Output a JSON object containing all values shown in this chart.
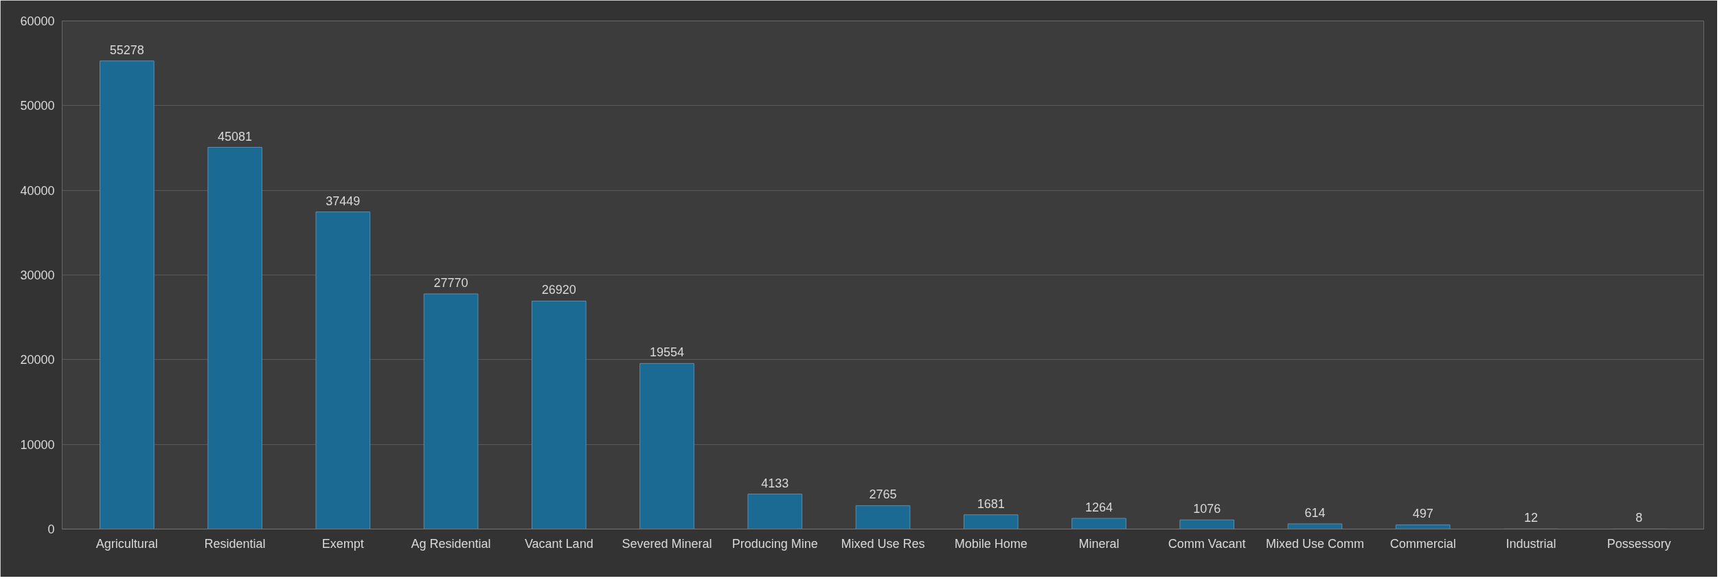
{
  "chart_data": {
    "type": "bar",
    "categories": [
      "Agricultural",
      "Residential",
      "Exempt",
      "Ag Residential",
      "Vacant Land",
      "Severed Mineral",
      "Producing Mine",
      "Mixed Use Res",
      "Mobile Home",
      "Mineral",
      "Comm Vacant",
      "Mixed Use Comm",
      "Commercial",
      "Industrial",
      "Possessory"
    ],
    "values": [
      55278,
      45081,
      37449,
      27770,
      26920,
      19554,
      4133,
      2765,
      1681,
      1264,
      1076,
      614,
      497,
      12,
      8
    ],
    "color": "#1b6a94",
    "ylim": [
      0,
      60000
    ],
    "yticks": [
      0,
      10000,
      20000,
      30000,
      40000,
      50000,
      60000
    ],
    "grid": "y",
    "data_labels": true
  }
}
